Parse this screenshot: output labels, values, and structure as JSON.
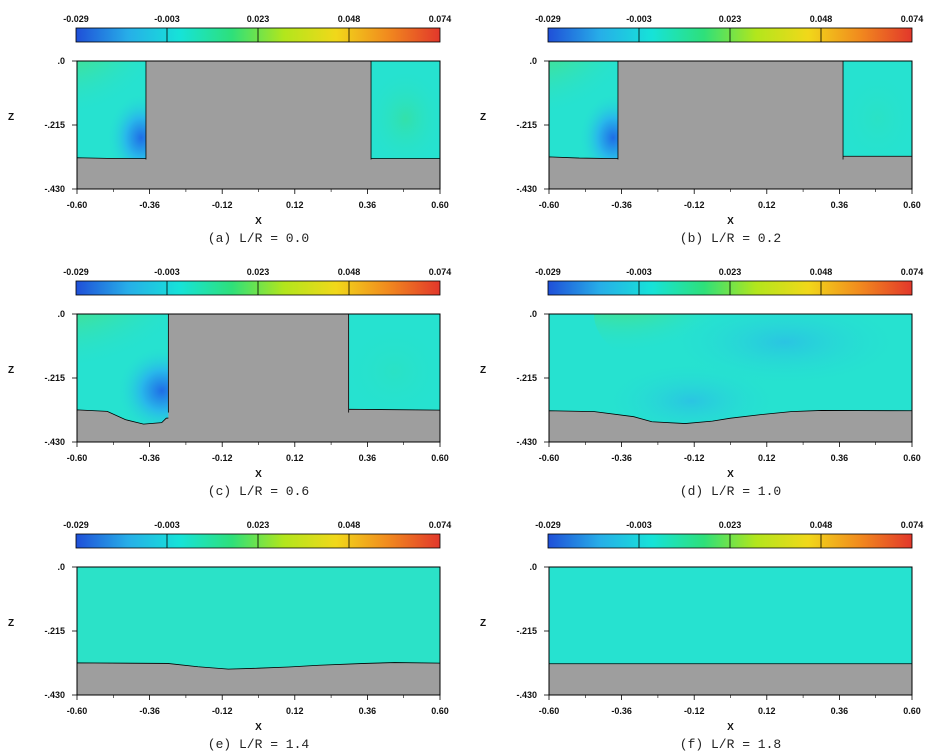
{
  "colorbar": {
    "ticks": [
      "-0.029",
      "-0.003",
      "0.023",
      "0.048",
      "0.074"
    ],
    "colors": [
      "#1f4fd8",
      "#27aee8",
      "#16e3d8",
      "#2ee07a",
      "#b2e61c",
      "#f1d81a",
      "#f18a1e",
      "#e2372b"
    ]
  },
  "colors": {
    "soil": "#9e9e9e",
    "water_base": "#26e2d0"
  },
  "chart_data": [
    {
      "type": "heatmap",
      "caption": "(a) L/R = 0.0",
      "xlabel": "X",
      "ylabel": "Z",
      "xlim": [
        -0.6,
        0.6
      ],
      "ylim": [
        -0.43,
        0.0
      ],
      "xticks": [
        "-0.60",
        "-0.36",
        "-0.12",
        "0.12",
        "0.36",
        "0.60"
      ],
      "yticks": [
        ".0",
        "-.215",
        "-.430"
      ],
      "pile": [
        -0.372,
        0.372
      ],
      "bed": [
        [
          -0.6,
          -0.325
        ],
        [
          -0.5,
          -0.327
        ],
        [
          -0.38,
          -0.328
        ],
        [
          0.372,
          -0.328
        ],
        [
          0.6,
          -0.328
        ]
      ]
    },
    {
      "type": "heatmap",
      "caption": "(b) L/R = 0.2",
      "xlabel": "X",
      "ylabel": "Z",
      "xlim": [
        -0.6,
        0.6
      ],
      "ylim": [
        -0.43,
        0.0
      ],
      "xticks": [
        "-0.60",
        "-0.36",
        "-0.12",
        "0.12",
        "0.36",
        "0.60"
      ],
      "yticks": [
        ".0",
        "-.215",
        "-.430"
      ],
      "pile": [
        -0.372,
        0.372
      ],
      "bed": [
        [
          -0.6,
          -0.322
        ],
        [
          -0.5,
          -0.326
        ],
        [
          -0.38,
          -0.328
        ],
        [
          0.372,
          -0.32
        ],
        [
          0.6,
          -0.32
        ]
      ]
    },
    {
      "type": "heatmap",
      "caption": "(c) L/R = 0.6",
      "xlabel": "X",
      "ylabel": "Z",
      "xlim": [
        -0.6,
        0.6
      ],
      "ylim": [
        -0.43,
        0.0
      ],
      "xticks": [
        "-0.60",
        "-0.36",
        "-0.12",
        "0.12",
        "0.36",
        "0.60"
      ],
      "yticks": [
        ".0",
        "-.215",
        "-.430"
      ],
      "pile": [
        -0.298,
        0.298
      ],
      "bed": [
        [
          -0.6,
          -0.322
        ],
        [
          -0.5,
          -0.327
        ],
        [
          -0.44,
          -0.355
        ],
        [
          -0.38,
          -0.37
        ],
        [
          -0.32,
          -0.365
        ],
        [
          -0.305,
          -0.35
        ],
        [
          0.298,
          -0.32
        ],
        [
          0.6,
          -0.323
        ]
      ]
    },
    {
      "type": "heatmap",
      "caption": "(d) L/R = 1.0",
      "xlabel": "X",
      "ylabel": "Z",
      "xlim": [
        -0.6,
        0.6
      ],
      "ylim": [
        -0.43,
        0.0
      ],
      "xticks": [
        "-0.60",
        "-0.36",
        "-0.12",
        "0.12",
        "0.36",
        "0.60"
      ],
      "yticks": [
        ".0",
        "-.215",
        "-.430"
      ],
      "pile": null,
      "bed": [
        [
          -0.6,
          -0.325
        ],
        [
          -0.45,
          -0.328
        ],
        [
          -0.32,
          -0.345
        ],
        [
          -0.26,
          -0.362
        ],
        [
          -0.15,
          -0.368
        ],
        [
          -0.06,
          -0.36
        ],
        [
          0.0,
          -0.35
        ],
        [
          0.1,
          -0.338
        ],
        [
          0.2,
          -0.328
        ],
        [
          0.3,
          -0.324
        ],
        [
          0.6,
          -0.325
        ]
      ]
    },
    {
      "type": "heatmap",
      "caption": "(e) L/R = 1.4",
      "xlabel": "X",
      "ylabel": "Z",
      "xlim": [
        -0.6,
        0.6
      ],
      "ylim": [
        -0.43,
        0.0
      ],
      "xticks": [
        "-0.60",
        "-0.36",
        "-0.12",
        "0.12",
        "0.36",
        "0.60"
      ],
      "yticks": [
        ".0",
        "-.215",
        "-.430"
      ],
      "pile": null,
      "bed": [
        [
          -0.6,
          -0.322
        ],
        [
          -0.3,
          -0.324
        ],
        [
          -0.2,
          -0.335
        ],
        [
          -0.1,
          -0.343
        ],
        [
          0.0,
          -0.34
        ],
        [
          0.1,
          -0.336
        ],
        [
          0.2,
          -0.33
        ],
        [
          0.35,
          -0.324
        ],
        [
          0.45,
          -0.321
        ],
        [
          0.6,
          -0.323
        ]
      ]
    },
    {
      "type": "heatmap",
      "caption": "(f) L/R = 1.8",
      "xlabel": "X",
      "ylabel": "Z",
      "xlim": [
        -0.6,
        0.6
      ],
      "ylim": [
        -0.43,
        0.0
      ],
      "xticks": [
        "-0.60",
        "-0.36",
        "-0.12",
        "0.12",
        "0.36",
        "0.60"
      ],
      "yticks": [
        ".0",
        "-.215",
        "-.430"
      ],
      "pile": null,
      "bed": [
        [
          -0.6,
          -0.325
        ],
        [
          0.6,
          -0.325
        ]
      ]
    }
  ]
}
